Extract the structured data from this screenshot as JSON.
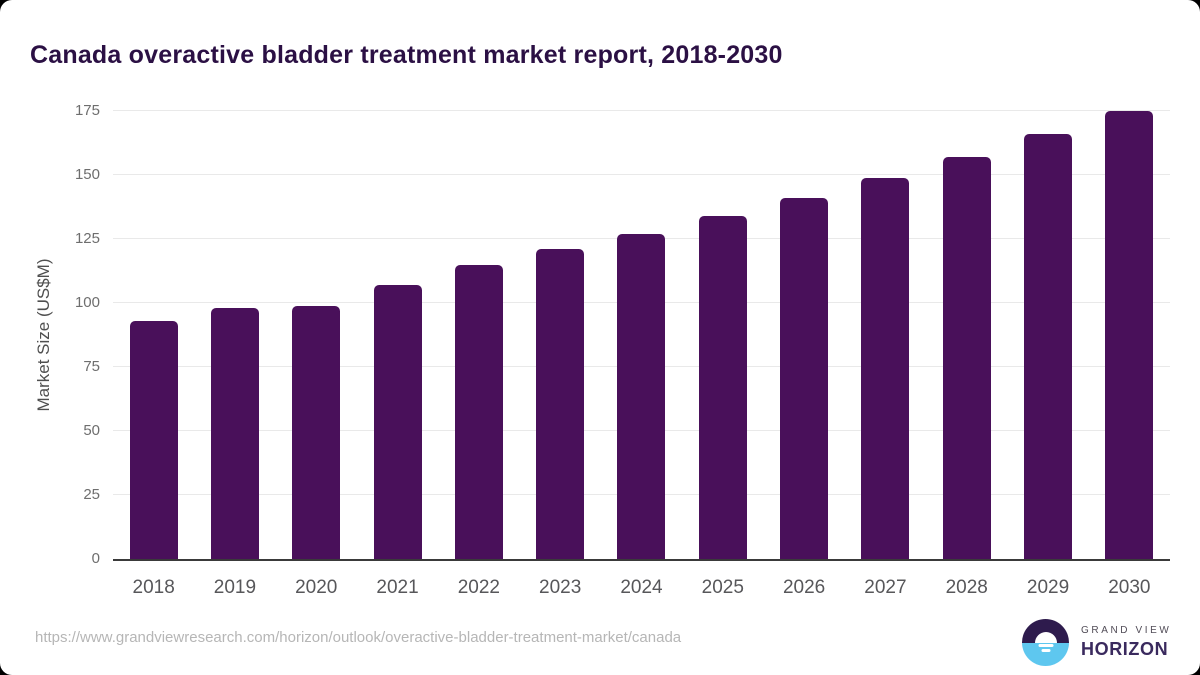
{
  "header": {
    "title": "Canada overactive bladder treatment market report, 2018-2030"
  },
  "chart_data": {
    "type": "bar",
    "title": "Canada overactive bladder treatment market report, 2018-2030",
    "categories": [
      "2018",
      "2019",
      "2020",
      "2021",
      "2022",
      "2023",
      "2024",
      "2025",
      "2026",
      "2027",
      "2028",
      "2029",
      "2030"
    ],
    "values": [
      93,
      98,
      99,
      107,
      115,
      121,
      127,
      134,
      141,
      149,
      157,
      166,
      175
    ],
    "xlabel": "",
    "ylabel": "Market Size (US$M)",
    "ylim": [
      0,
      175
    ],
    "yticks": [
      0,
      25,
      50,
      75,
      100,
      125,
      150,
      175
    ],
    "grid": true,
    "legend": "none"
  },
  "footer": {
    "source_url": "https://www.grandviewresearch.com/horizon/outlook/overactive-bladder-treatment-market/canada",
    "logo": {
      "line1": "GRAND VIEW",
      "line2": "HORIZON"
    }
  },
  "colors": {
    "bar": "#49105a",
    "title": "#2b1044",
    "logo_dark": "#2e1b4d",
    "logo_blue": "#5ec7ef",
    "logo_horizon_text": "#3a2a5e"
  }
}
